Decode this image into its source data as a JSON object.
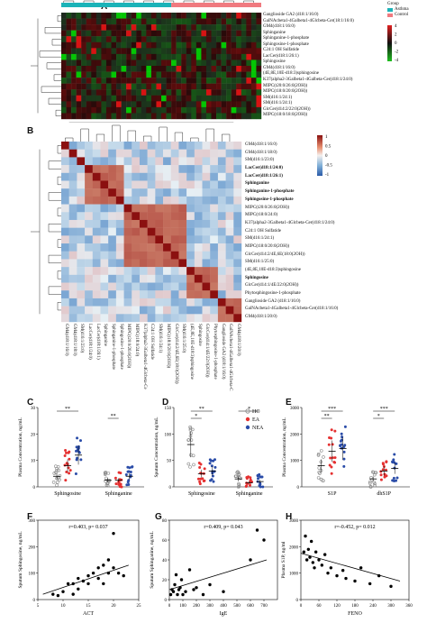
{
  "figure": {
    "panel_labels": [
      "A",
      "B",
      "C",
      "D",
      "E",
      "F",
      "G",
      "H"
    ],
    "group_legend": {
      "title": "Group",
      "items": [
        {
          "label": "Asthma",
          "color": "#1bb3b8"
        },
        {
          "label": "Control",
          "color": "#f07a80"
        }
      ]
    },
    "heatmap_a": {
      "scale_ticks": [
        "4",
        "2",
        "0",
        "-2",
        "-4"
      ],
      "top_bar_colors": {
        "asthma": "#1bb3b8",
        "control": "#f07a80"
      },
      "rows": [
        "Ganglioside GA2 (d18:1/16:0)",
        "GalNAcbeta1-4Galbeta1-4Glcbeta-Cer(18:1/16:0)",
        "GM4(d18:1/16:0)",
        "Sphinganine",
        "Sphinganine-1-phosphate",
        "Sphingosine-1-phosphate",
        "C24:1 OH Sulfatide",
        "LacCer(d18:1/26:1)",
        "Sphingosine",
        "GM4(d18:1/16:0)",
        "(4E,8E,10E-d18:3)sphingosine",
        "K37(alpha2-3Galbeta1-4Galbeta-Cer(d18:1/24:0)",
        "MIPC(t20:0/26:0(2OH))",
        "MIPC(t18:0/20:0(2OH))",
        "SM(d16:1/24:1)",
        "SM(d16:1/24:1)",
        "GlcCer(d14:2/22:0(2OH))",
        "MIPC(t18:0/18:0(2OH))"
      ]
    },
    "corr_b": {
      "scale_ticks": [
        "1",
        "0.5",
        "0",
        "-0.5",
        "-1"
      ],
      "rows": [
        "GM4(d18:1/16:0)",
        "GM4(d18:1/18:0)",
        "SM(d16:1/23:0)",
        "LacCer(d18:1/24:0)",
        "LacCer(d18:1/26:1)",
        "Sphinganine",
        "Sphinganine-1-phosphate",
        "Sphingosine-1-phosphate",
        "MIPC(t20:0/26:0(2OH))",
        "MIPC(t18:0/24:0)",
        "K37(alpha2-3Galbeta1-4Glcbeta-Cer(d18:1/24:0)",
        "C24:1 OH Sulfatide",
        "SM(d16:1/24:1)",
        "MIPC(t18:0/20:0(2OH))",
        "GlcCer(d14:2/4E,6E(18:0(2OH))",
        "SM(d16:1/25:0)",
        "(4E,8E,10E-d18:3)sphingosine",
        "Sphingosine",
        "GlcCer(d14:1/4E/22:0(2OH))",
        "Phytosphingosine-1-phosphate",
        "Ganglioside GA2 (d18:1/16:0)",
        "GalNAcbeta1-4Galbeta1-4Glcbeta-Cer(d18:1/16:0)",
        "GM4(d18:1/20:0)"
      ]
    }
  },
  "chart_data": [
    {
      "panel": "C",
      "type": "scatter",
      "ylabel": "Plasma Concentration, ng/mL",
      "ylim": [
        0,
        30
      ],
      "yticks": [
        "0",
        "10",
        "20",
        "30"
      ],
      "categories": [
        "Sphingosine",
        "Sphinganine"
      ],
      "significance": [
        "**",
        "**"
      ],
      "series": [
        {
          "name": "HC",
          "color": "#8a8a8a",
          "means": [
            4,
            2.5
          ]
        },
        {
          "name": "EA",
          "color": "#e53030",
          "means": [
            8,
            2.5
          ]
        },
        {
          "name": "NEA",
          "color": "#2a4ca8",
          "means": [
            12,
            4
          ]
        }
      ]
    },
    {
      "panel": "D",
      "type": "scatter",
      "ylabel": "Sputum Concentration, ng/mL",
      "ylim": [
        0,
        150
      ],
      "yticks": [
        "0",
        "50",
        "100",
        "150"
      ],
      "categories": [
        "Sphingosine",
        "Sphinganine"
      ],
      "significance": [
        "**",
        "*",
        "*"
      ],
      "legend": [
        "HC",
        "EA",
        "NEA"
      ],
      "series": [
        {
          "name": "HC",
          "color": "#8a8a8a",
          "means": [
            80,
            15
          ]
        },
        {
          "name": "EA",
          "color": "#e53030",
          "means": [
            25,
            8
          ]
        },
        {
          "name": "NEA",
          "color": "#2a4ca8",
          "means": [
            30,
            10
          ]
        }
      ]
    },
    {
      "panel": "E",
      "type": "scatter",
      "ylabel": "Plasma Concentration, ng/mL",
      "ylim": [
        0,
        3000
      ],
      "yticks": [
        "0",
        "1000",
        "2000",
        "3000"
      ],
      "categories": [
        "S1P",
        "dhS1P"
      ],
      "significance": [
        "***",
        "**",
        "***",
        "*"
      ],
      "series": [
        {
          "name": "HC",
          "color": "#8a8a8a",
          "means": [
            800,
            300
          ]
        },
        {
          "name": "EA",
          "color": "#e53030",
          "means": [
            1350,
            600
          ]
        },
        {
          "name": "NEA",
          "color": "#2a4ca8",
          "means": [
            1450,
            700
          ]
        }
      ]
    },
    {
      "panel": "F",
      "type": "scatter",
      "annotation": "r=0.403,  p= 0.037",
      "xlabel": "ACT",
      "ylabel": "Sputum Sphingosine, ng/mL",
      "xlim": [
        5,
        25
      ],
      "ylim": [
        0,
        300
      ],
      "xticks": [
        "5",
        "10",
        "15",
        "20",
        "25"
      ],
      "yticks": [
        "0",
        "100",
        "200",
        "300"
      ],
      "x": [
        8,
        9,
        10,
        11,
        12,
        12,
        13,
        13,
        14,
        15,
        15,
        16,
        17,
        17,
        18,
        18,
        19,
        19,
        20,
        20,
        21,
        22
      ],
      "y": [
        20,
        15,
        30,
        60,
        20,
        60,
        80,
        40,
        70,
        60,
        90,
        100,
        80,
        120,
        60,
        130,
        100,
        150,
        250,
        120,
        100,
        90
      ],
      "fit": [
        [
          6,
          20
        ],
        [
          23,
          130
        ]
      ]
    },
    {
      "panel": "G",
      "type": "scatter",
      "annotation": "r=0.409,  p= 0.043",
      "xlabel": "IgE",
      "ylabel": "Sputum Sphinganine, ng/mL",
      "xlim": [
        0,
        800
      ],
      "ylim": [
        0,
        80
      ],
      "xticks": [
        "0",
        "100",
        "200",
        "300",
        "400",
        "500",
        "600",
        "700"
      ],
      "yticks": [
        "0",
        "20",
        "40",
        "60",
        "80"
      ],
      "x": [
        10,
        20,
        30,
        40,
        50,
        60,
        70,
        80,
        90,
        100,
        120,
        150,
        180,
        200,
        250,
        300,
        400,
        600,
        650,
        700
      ],
      "y": [
        5,
        10,
        8,
        15,
        25,
        5,
        10,
        12,
        20,
        5,
        8,
        30,
        10,
        12,
        5,
        15,
        8,
        40,
        70,
        60
      ],
      "fit": [
        [
          0,
          10
        ],
        [
          720,
          40
        ]
      ]
    },
    {
      "panel": "H",
      "type": "scatter",
      "annotation": "r=-0.452,  p= 0.012",
      "xlabel": "FENO",
      "ylabel": "Plasma S1P, ng/ml",
      "xlim": [
        0,
        360
      ],
      "ylim": [
        0,
        3000
      ],
      "xticks": [
        "0",
        "60",
        "120",
        "180",
        "240",
        "300",
        "360"
      ],
      "yticks": [
        "0",
        "1000",
        "2000",
        "3000"
      ],
      "x": [
        10,
        15,
        20,
        25,
        30,
        35,
        40,
        45,
        50,
        60,
        70,
        80,
        90,
        100,
        120,
        140,
        150,
        180,
        200,
        230,
        260,
        300
      ],
      "y": [
        1800,
        2400,
        1500,
        1900,
        1600,
        2200,
        1400,
        1200,
        1800,
        1500,
        1300,
        1700,
        1000,
        1200,
        900,
        1100,
        800,
        700,
        1200,
        600,
        900,
        500
      ],
      "fit": [
        [
          0,
          1750
        ],
        [
          330,
          700
        ]
      ]
    }
  ]
}
